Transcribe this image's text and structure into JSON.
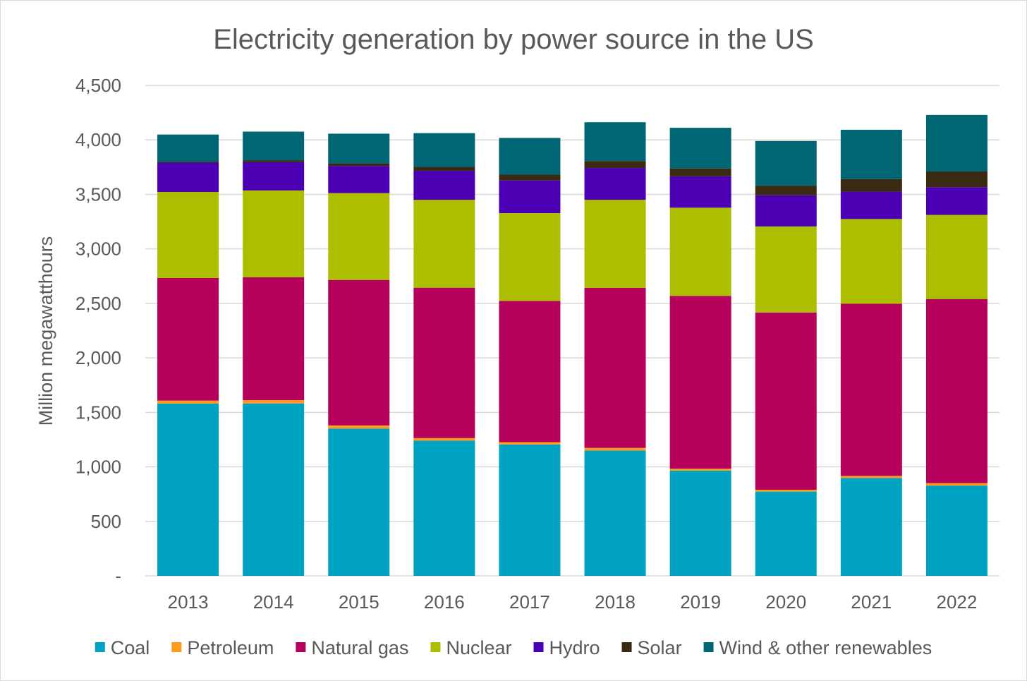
{
  "chart_data": {
    "type": "bar",
    "stacked": true,
    "title": "Electricity generation by power source in the US",
    "xlabel": "",
    "ylabel": "Million megawatthours",
    "ylim": [
      0,
      4500
    ],
    "yticks": [
      0,
      500,
      1000,
      1500,
      2000,
      2500,
      3000,
      3500,
      4000,
      4500
    ],
    "ytick_labels": [
      "-",
      "500",
      "1,000",
      "1,500",
      "2,000",
      "2,500",
      "3,000",
      "3,500",
      "4,000",
      "4,500"
    ],
    "grid": true,
    "legend_position": "bottom",
    "categories": [
      "2013",
      "2014",
      "2015",
      "2016",
      "2017",
      "2018",
      "2019",
      "2020",
      "2021",
      "2022"
    ],
    "series": [
      {
        "name": "Coal",
        "color": "#00a2c2",
        "values": [
          1581,
          1582,
          1352,
          1240,
          1206,
          1149,
          965,
          773,
          898,
          828
        ]
      },
      {
        "name": "Petroleum",
        "color": "#ff9a1a",
        "values": [
          27,
          30,
          28,
          24,
          21,
          25,
          18,
          17,
          19,
          23
        ]
      },
      {
        "name": "Natural gas",
        "color": "#b5005c",
        "values": [
          1125,
          1127,
          1335,
          1380,
          1296,
          1469,
          1586,
          1626,
          1579,
          1689
        ]
      },
      {
        "name": "Nuclear",
        "color": "#adbd00",
        "values": [
          789,
          797,
          797,
          806,
          805,
          807,
          809,
          790,
          778,
          772
        ]
      },
      {
        "name": "Hydro",
        "color": "#4b00b4",
        "values": [
          269,
          259,
          249,
          266,
          300,
          292,
          288,
          285,
          251,
          254
        ]
      },
      {
        "name": "Solar",
        "color": "#3a2a12",
        "values": [
          9,
          18,
          25,
          36,
          53,
          64,
          72,
          89,
          115,
          144
        ]
      },
      {
        "name": "Wind & other renewables",
        "color": "#006673",
        "values": [
          249,
          263,
          271,
          310,
          337,
          356,
          373,
          410,
          453,
          519
        ]
      }
    ]
  }
}
